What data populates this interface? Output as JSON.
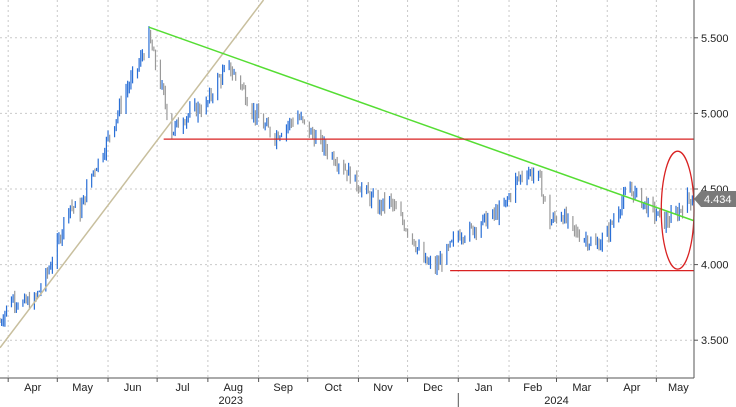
{
  "chart_data": {
    "type": "candlestick",
    "colors": {
      "bar": "#2a6fd6",
      "down_bar": "#9a9a9a",
      "trendline": "#55dd33",
      "support_line": "#d92222",
      "rising_line": "#c8bf9e",
      "highlight": "#d92222",
      "axis": "#555555",
      "grid": "#c9c9c9",
      "last_tag": "#7a7a7a"
    },
    "y_axis": {
      "ylim": [
        3.25,
        5.75
      ],
      "ticks": [
        "3.500",
        "4.000",
        "4.500",
        "5.000",
        "5.500"
      ],
      "tick_values": [
        3.5,
        4.0,
        4.5,
        5.0,
        5.5
      ],
      "side": "right"
    },
    "x_axis": {
      "months": [
        "Apr",
        "May",
        "Jun",
        "Jul",
        "Aug",
        "Sep",
        "Oct",
        "Nov",
        "Dec",
        "Jan",
        "Feb",
        "Mar",
        "Apr",
        "May"
      ],
      "month_dates": [
        "2023-04-01",
        "2023-05-01",
        "2023-06-01",
        "2023-07-01",
        "2023-08-01",
        "2023-09-01",
        "2023-10-01",
        "2023-11-01",
        "2023-12-01",
        "2024-01-01",
        "2024-02-01",
        "2024-03-01",
        "2024-04-01",
        "2024-05-01"
      ],
      "years": [
        {
          "label": "2023",
          "date": "2023-08-15"
        },
        {
          "label": "2024",
          "date": "2024-03-01"
        }
      ],
      "range": [
        "2023-03-27",
        "2024-05-24"
      ]
    },
    "last_value": "4.434",
    "grid": true,
    "series": [
      {
        "x": [
          "2023-03-27",
          "2023-04-03",
          "2023-04-10",
          "2023-04-17",
          "2023-04-24",
          "2023-05-01",
          "2023-05-08",
          "2023-05-15",
          "2023-05-22",
          "2023-05-29",
          "2023-06-05",
          "2023-06-12",
          "2023-06-19",
          "2023-06-26",
          "2023-07-03",
          "2023-07-10",
          "2023-07-17",
          "2023-07-24",
          "2023-07-31",
          "2023-08-07",
          "2023-08-14",
          "2023-08-21",
          "2023-08-28",
          "2023-09-04",
          "2023-09-11",
          "2023-09-18",
          "2023-09-25",
          "2023-10-02",
          "2023-10-09",
          "2023-10-16",
          "2023-10-23",
          "2023-10-30",
          "2023-11-06",
          "2023-11-13",
          "2023-11-20",
          "2023-11-27",
          "2023-12-04",
          "2023-12-11",
          "2023-12-18",
          "2023-12-25",
          "2024-01-01",
          "2024-01-08",
          "2024-01-15",
          "2024-01-22",
          "2024-01-29",
          "2024-02-05",
          "2024-02-12",
          "2024-02-19",
          "2024-02-26",
          "2024-03-04",
          "2024-03-11",
          "2024-03-18",
          "2024-03-25",
          "2024-04-01",
          "2024-04-08",
          "2024-04-15",
          "2024-04-22",
          "2024-04-29",
          "2024-05-06",
          "2024-05-13",
          "2024-05-20"
        ],
        "y": [
          3.62,
          3.78,
          3.74,
          3.76,
          3.92,
          4.12,
          4.4,
          4.35,
          4.6,
          4.75,
          4.95,
          5.15,
          5.3,
          5.5,
          5.2,
          4.88,
          4.97,
          5.02,
          5.05,
          5.22,
          5.3,
          5.2,
          5.02,
          4.92,
          4.85,
          4.92,
          4.98,
          4.88,
          4.8,
          4.72,
          4.65,
          4.55,
          4.47,
          4.38,
          4.42,
          4.3,
          4.18,
          4.02,
          3.98,
          4.08,
          4.2,
          4.22,
          4.28,
          4.32,
          4.38,
          4.55,
          4.62,
          4.58,
          4.28,
          4.34,
          4.22,
          4.18,
          4.12,
          4.2,
          4.38,
          4.5,
          4.42,
          4.35,
          4.28,
          4.33,
          4.434
        ]
      }
    ],
    "trendline": {
      "from": [
        "2023-06-26",
        5.57
      ],
      "to": [
        "2024-05-24",
        4.29
      ]
    },
    "rising_line": {
      "from": [
        "2023-03-27",
        3.45
      ],
      "to": [
        "2023-09-04",
        5.75
      ]
    },
    "resistance": {
      "from": [
        "2023-07-05",
        4.83
      ],
      "to": [
        "2024-05-24",
        4.83
      ]
    },
    "support": {
      "from": [
        "2023-12-27",
        3.96
      ],
      "to": [
        "2024-05-24",
        3.96
      ]
    },
    "highlight_window": {
      "center": [
        "2024-05-14",
        4.36
      ],
      "rx_days": 10,
      "ry": 0.39
    }
  }
}
